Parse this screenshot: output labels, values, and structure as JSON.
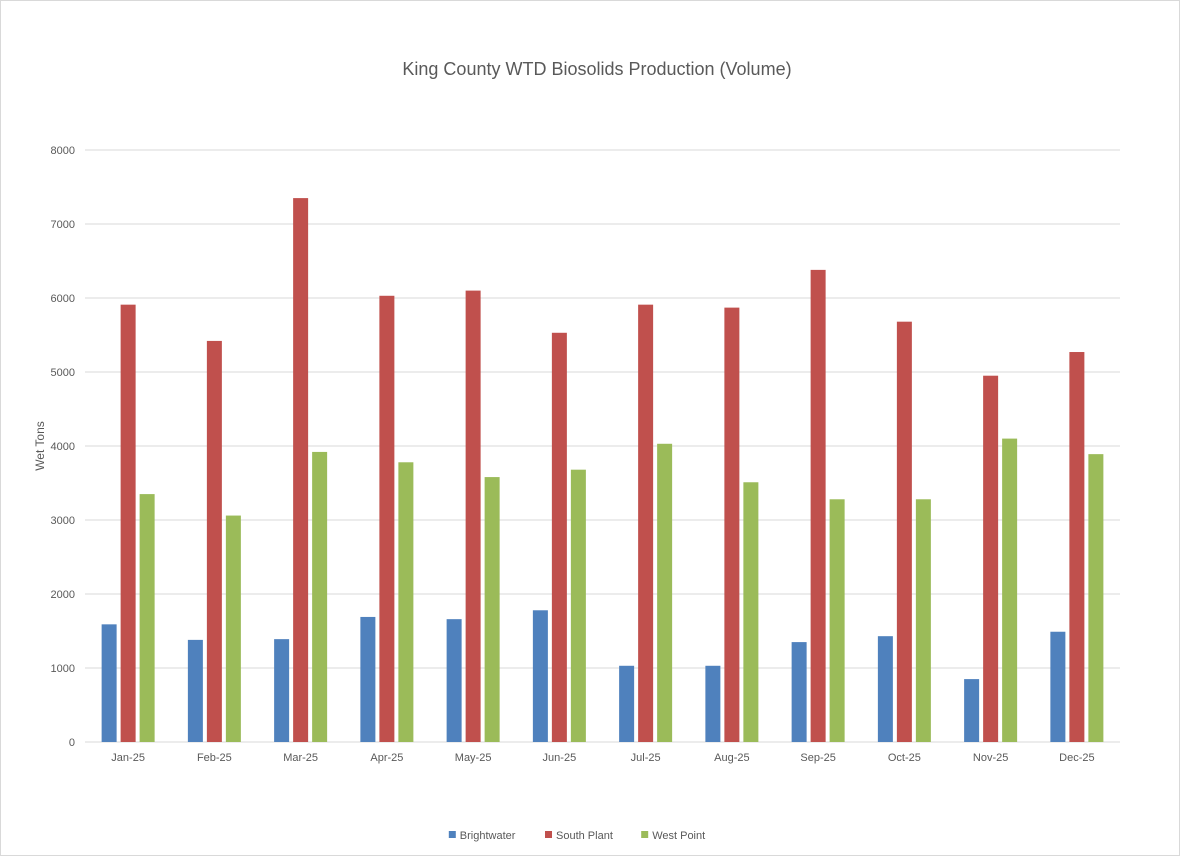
{
  "chart_data": {
    "type": "bar",
    "title": "King County WTD Biosolids Production (Volume)",
    "xlabel": "",
    "ylabel": "Wet Tons",
    "ylim": [
      0,
      8000
    ],
    "yticks": [
      "0",
      "1000",
      "2000",
      "3000",
      "4000",
      "5000",
      "6000",
      "7000",
      "8000"
    ],
    "grid": true,
    "legend_position": "bottom",
    "categories": [
      "Jan-25",
      "Feb-25",
      "Mar-25",
      "Apr-25",
      "May-25",
      "Jun-25",
      "Jul-25",
      "Aug-25",
      "Sep-25",
      "Oct-25",
      "Nov-25",
      "Dec-25"
    ],
    "series": [
      {
        "name": "Brightwater",
        "color": "#4f81bd",
        "values": [
          1590,
          1380,
          1390,
          1690,
          1660,
          1780,
          1030,
          1030,
          1350,
          1430,
          850,
          1490
        ]
      },
      {
        "name": "South Plant",
        "color": "#c0504d",
        "values": [
          5910,
          5420,
          7350,
          6030,
          6100,
          5530,
          5910,
          5870,
          6380,
          5680,
          4950,
          5270
        ]
      },
      {
        "name": "West Point",
        "color": "#9bbb59",
        "values": [
          3350,
          3060,
          3920,
          3780,
          3580,
          3680,
          4030,
          3510,
          3280,
          3280,
          4100,
          3890
        ]
      }
    ]
  }
}
